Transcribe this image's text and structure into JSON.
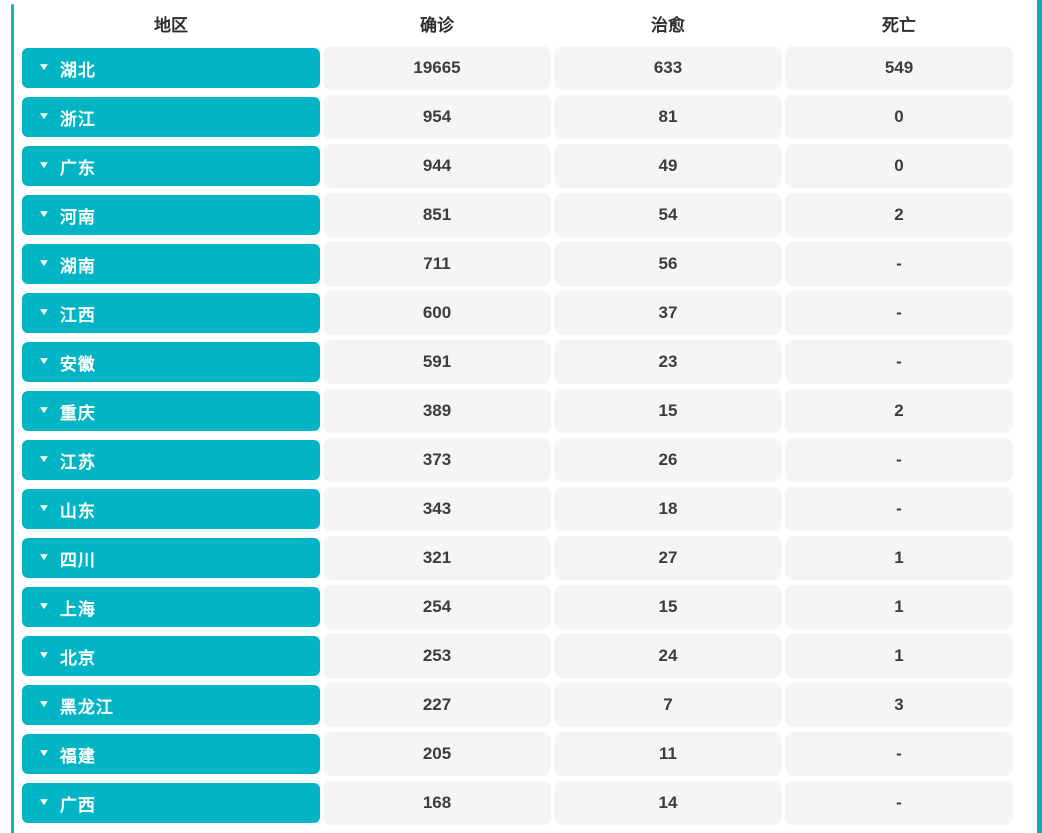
{
  "colors": {
    "accent": "#01b5c5",
    "frame_left": "#0db5c5",
    "frame_right": "#17a8b6",
    "cell_background": "#f4f5f7",
    "header_text": "#2f2f2f",
    "value_text": "#3d3d40",
    "button_text": "#ffffff",
    "page_background": "#ffffff"
  },
  "icons": {
    "caret": "▼"
  },
  "table": {
    "headers": {
      "region": "地区",
      "confirmed": "确诊",
      "cured": "治愈",
      "dead": "死亡"
    },
    "rows": [
      {
        "region": "湖北",
        "confirmed": "19665",
        "cured": "633",
        "dead": "549"
      },
      {
        "region": "浙江",
        "confirmed": "954",
        "cured": "81",
        "dead": "0"
      },
      {
        "region": "广东",
        "confirmed": "944",
        "cured": "49",
        "dead": "0"
      },
      {
        "region": "河南",
        "confirmed": "851",
        "cured": "54",
        "dead": "2"
      },
      {
        "region": "湖南",
        "confirmed": "711",
        "cured": "56",
        "dead": "-"
      },
      {
        "region": "江西",
        "confirmed": "600",
        "cured": "37",
        "dead": "-"
      },
      {
        "region": "安徽",
        "confirmed": "591",
        "cured": "23",
        "dead": "-"
      },
      {
        "region": "重庆",
        "confirmed": "389",
        "cured": "15",
        "dead": "2"
      },
      {
        "region": "江苏",
        "confirmed": "373",
        "cured": "26",
        "dead": "-"
      },
      {
        "region": "山东",
        "confirmed": "343",
        "cured": "18",
        "dead": "-"
      },
      {
        "region": "四川",
        "confirmed": "321",
        "cured": "27",
        "dead": "1"
      },
      {
        "region": "上海",
        "confirmed": "254",
        "cured": "15",
        "dead": "1"
      },
      {
        "region": "北京",
        "confirmed": "253",
        "cured": "24",
        "dead": "1"
      },
      {
        "region": "黑龙江",
        "confirmed": "227",
        "cured": "7",
        "dead": "3"
      },
      {
        "region": "福建",
        "confirmed": "205",
        "cured": "11",
        "dead": "-"
      },
      {
        "region": "广西",
        "confirmed": "168",
        "cured": "14",
        "dead": "-"
      }
    ]
  }
}
